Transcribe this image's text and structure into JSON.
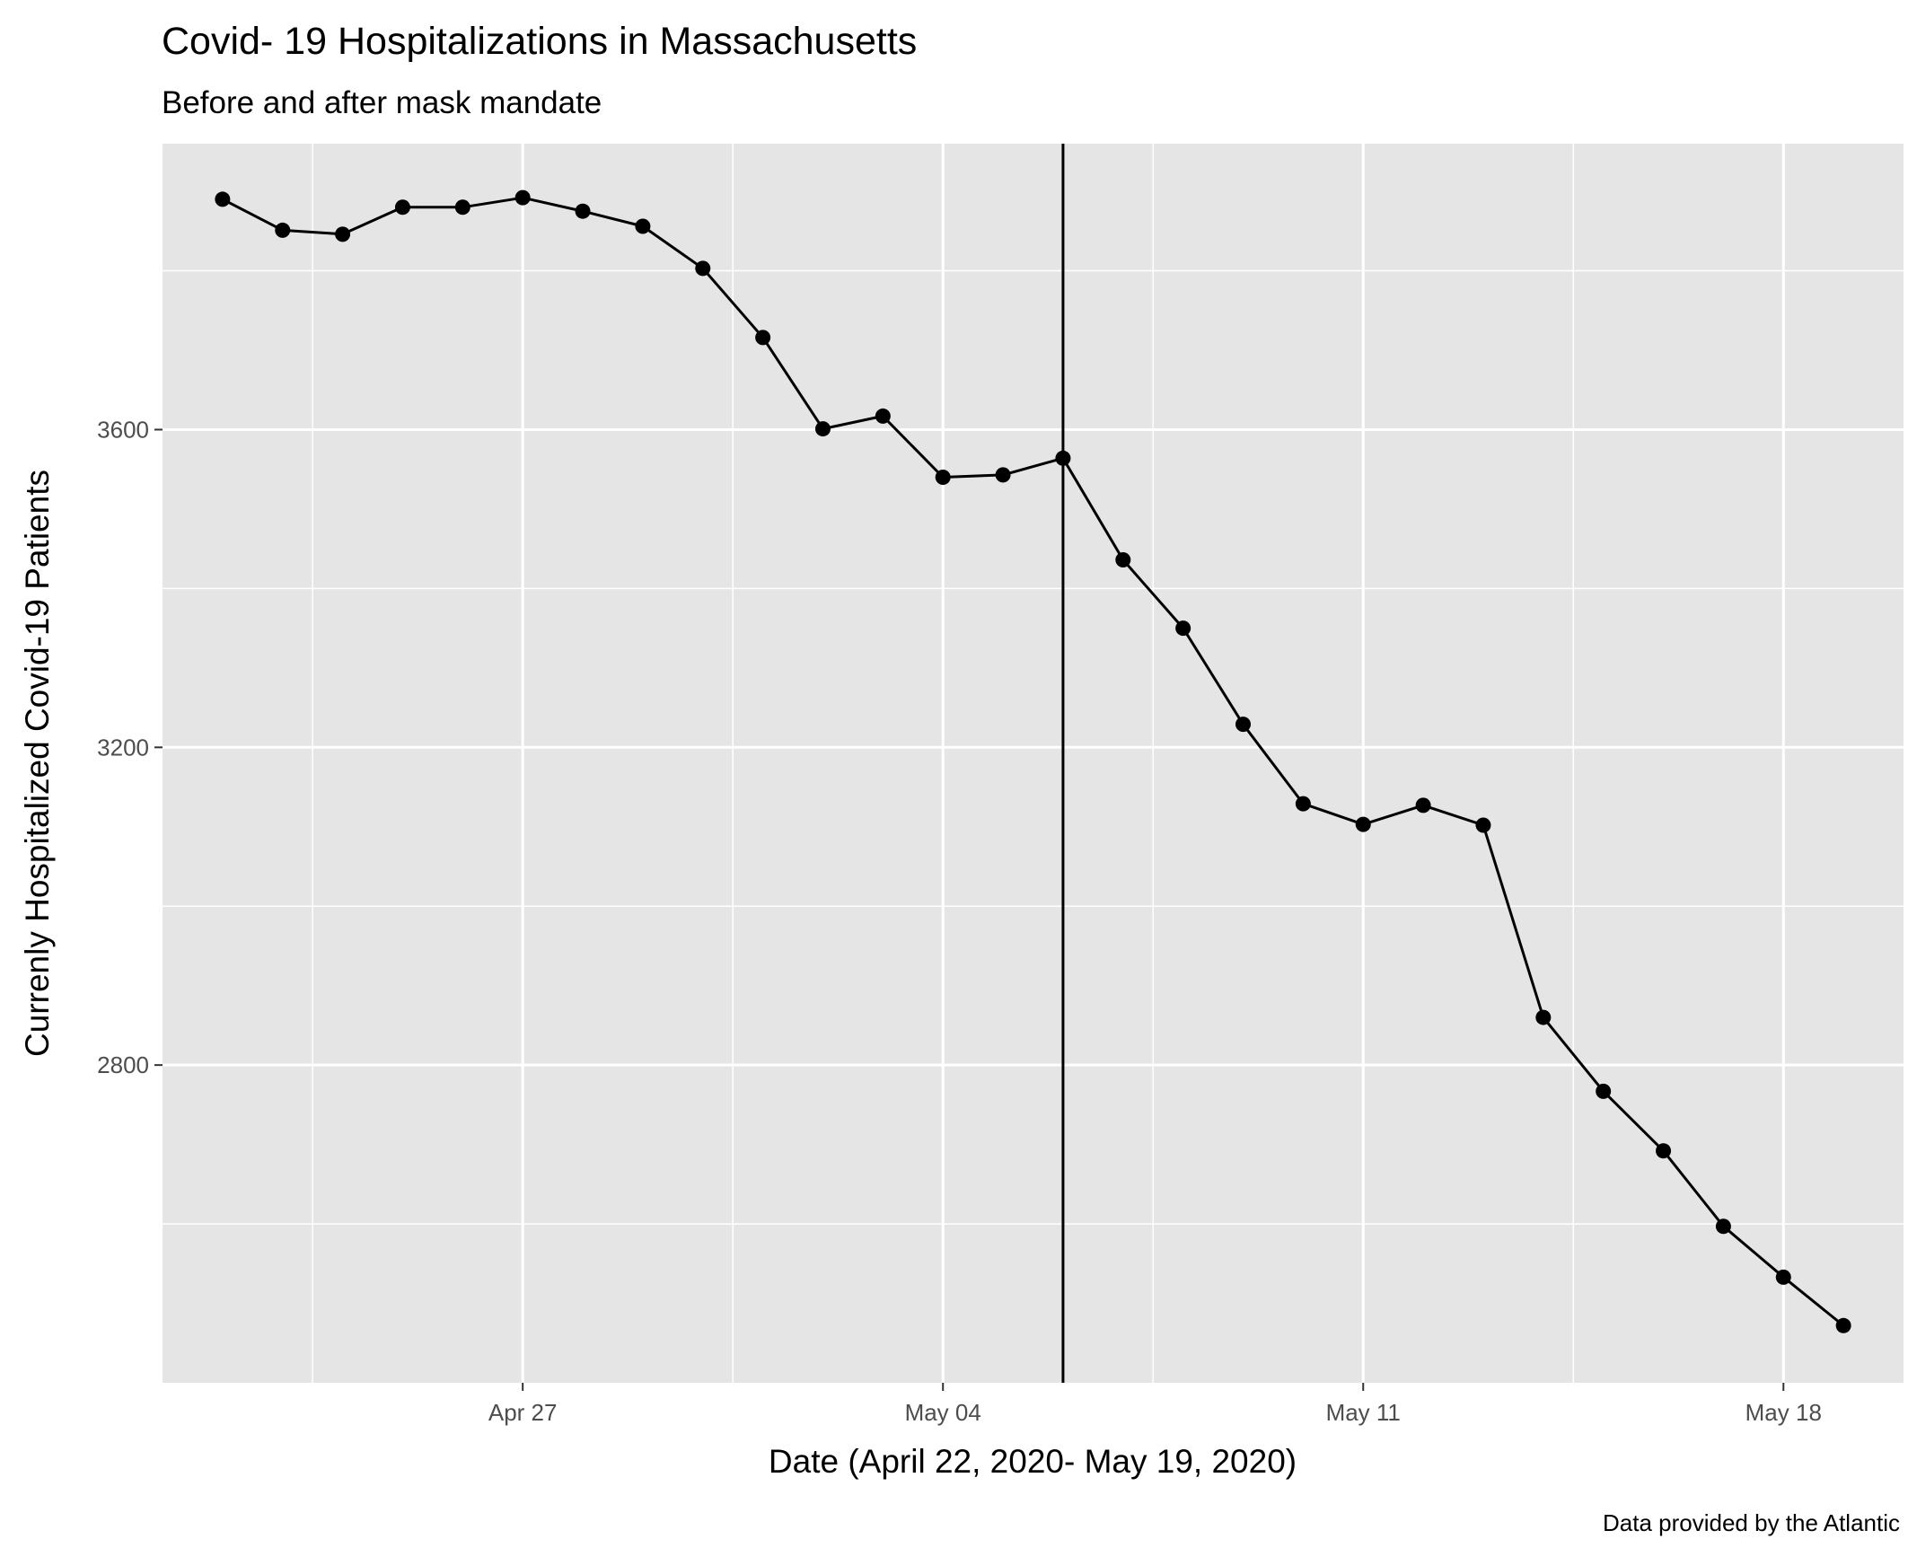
{
  "chart_data": {
    "type": "line",
    "title": "Covid- 19 Hospitalizations in Massachusetts",
    "subtitle": "Before and after mask mandate",
    "xlabel": "Date (April 22, 2020- May 19, 2020)",
    "ylabel": "Currenly Hospitalized Covid-19 Patients",
    "caption": "Data provided by the Atlantic",
    "x_ticks": [
      {
        "date": "2020-04-27",
        "label": "Apr 27"
      },
      {
        "date": "2020-05-04",
        "label": "May 04"
      },
      {
        "date": "2020-05-11",
        "label": "May 11"
      },
      {
        "date": "2020-05-18",
        "label": "May 18"
      }
    ],
    "y_ticks": [
      2800,
      3200,
      3600
    ],
    "xlim": [
      "2020-04-21",
      "2020-05-20"
    ],
    "ylim": [
      2400,
      3960
    ],
    "grid": true,
    "vline_date": "2020-05-06",
    "x": [
      "2020-04-22",
      "2020-04-23",
      "2020-04-24",
      "2020-04-25",
      "2020-04-26",
      "2020-04-27",
      "2020-04-28",
      "2020-04-29",
      "2020-04-30",
      "2020-05-01",
      "2020-05-02",
      "2020-05-03",
      "2020-05-04",
      "2020-05-05",
      "2020-05-06",
      "2020-05-07",
      "2020-05-08",
      "2020-05-09",
      "2020-05-10",
      "2020-05-11",
      "2020-05-12",
      "2020-05-13",
      "2020-05-14",
      "2020-05-15",
      "2020-05-16",
      "2020-05-17",
      "2020-05-18",
      "2020-05-19"
    ],
    "series": [
      {
        "values": [
          3890,
          3851,
          3846,
          3880,
          3880,
          3892,
          3875,
          3856,
          3803,
          3716,
          3601,
          3617,
          3540,
          3543,
          3564,
          3436,
          3350,
          3229,
          3129,
          3103,
          3127,
          3102,
          2860,
          2767,
          2692,
          2597,
          2533,
          2472
        ]
      }
    ]
  },
  "colors": {
    "panel": "#e5e5e5",
    "grid": "#ffffff",
    "line": "#000000",
    "point": "#000000",
    "tick_text": "#4d4d4d"
  }
}
